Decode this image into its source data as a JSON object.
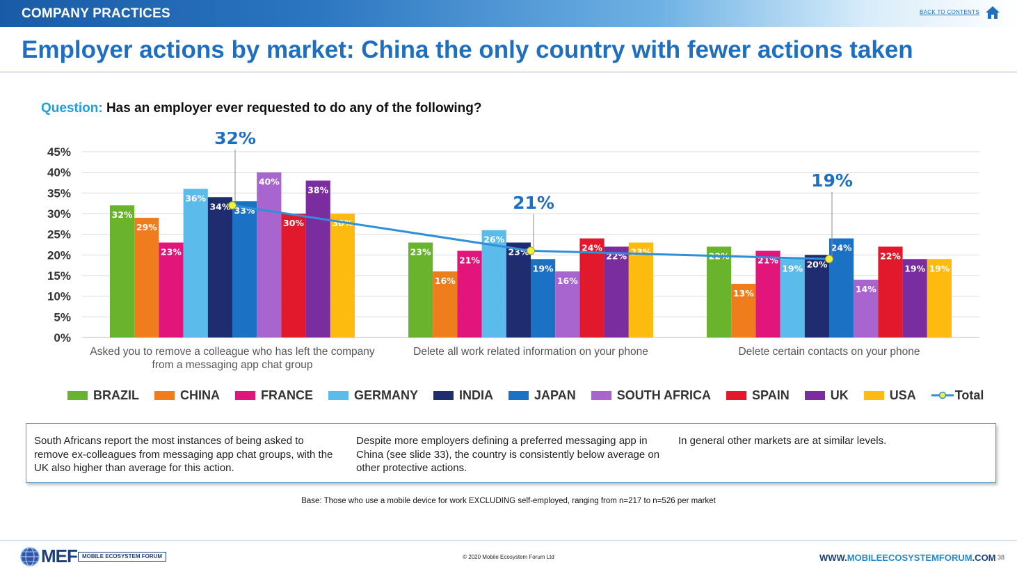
{
  "header": {
    "section_title": "COMPANY PRACTICES",
    "back_link": "BACK TO CONTENTS",
    "home_icon": "home-icon"
  },
  "page_title": "Employer actions by market: China the only country with fewer actions taken",
  "question": {
    "label": "Question:",
    "text": "Has an employer ever requested to do any of the following?"
  },
  "chart_data": {
    "type": "bar",
    "title": "",
    "xlabel": "",
    "ylabel": "",
    "ylim": [
      0,
      45
    ],
    "y_ticks": [
      "0%",
      "5%",
      "10%",
      "15%",
      "20%",
      "25%",
      "30%",
      "35%",
      "40%",
      "45%"
    ],
    "grid": true,
    "legend_position": "bottom",
    "categories": [
      [
        "Asked you to remove a colleague who has left the company",
        "from a messaging app chat group"
      ],
      [
        "Delete all work related information on your phone"
      ],
      [
        "Delete certain contacts on your phone"
      ]
    ],
    "series": [
      {
        "name": "BRAZIL",
        "color": "#6ab42d",
        "values": [
          32,
          23,
          22
        ]
      },
      {
        "name": "CHINA",
        "color": "#f07d1d",
        "values": [
          29,
          16,
          13
        ]
      },
      {
        "name": "FRANCE",
        "color": "#e2157a",
        "values": [
          23,
          21,
          21
        ]
      },
      {
        "name": "GERMANY",
        "color": "#5bbcec",
        "values": [
          36,
          26,
          19
        ]
      },
      {
        "name": "INDIA",
        "color": "#1f2c6f",
        "values": [
          34,
          23,
          20
        ]
      },
      {
        "name": "JAPAN",
        "color": "#1b72c4",
        "values": [
          33,
          19,
          24
        ]
      },
      {
        "name": "SOUTH AFRICA",
        "color": "#a865cf",
        "values": [
          40,
          16,
          14
        ]
      },
      {
        "name": "SPAIN",
        "color": "#e2192c",
        "values": [
          30,
          24,
          22
        ]
      },
      {
        "name": "UK",
        "color": "#7a2d9e",
        "values": [
          38,
          22,
          19
        ]
      },
      {
        "name": "USA",
        "color": "#fdbb0f",
        "values": [
          30,
          23,
          19
        ]
      }
    ],
    "total": {
      "name": "Total",
      "color": "#2f8fd8",
      "marker_color": "#f1f03a",
      "values": [
        32,
        21,
        19
      ]
    },
    "data_label_suffix": "%"
  },
  "insights": [
    {
      "text": "South Africans report the most instances of being asked to remove ex-colleagues from messaging app chat groups, with the UK also higher than average for this action."
    },
    {
      "text": "Despite more employers defining a preferred messaging app in China (see slide 33), the country is consistently below average on other protective actions."
    },
    {
      "text": "In general other markets are at similar levels."
    }
  ],
  "base_note": "Base: Those who use a mobile device for work EXCLUDING self-employed, ranging from n=217 to n=526 per market",
  "footer": {
    "logo_text": "MEF",
    "logo_subtext": "MOBILE ECOSYSTEM FORUM",
    "copyright": "© 2020 Mobile Ecosystem Forum Ltd",
    "url_prefix": "WWW.",
    "url_highlight": "MOBILEECOSYSTEMFORUM",
    "url_suffix": ".COM",
    "page_number": "38"
  }
}
